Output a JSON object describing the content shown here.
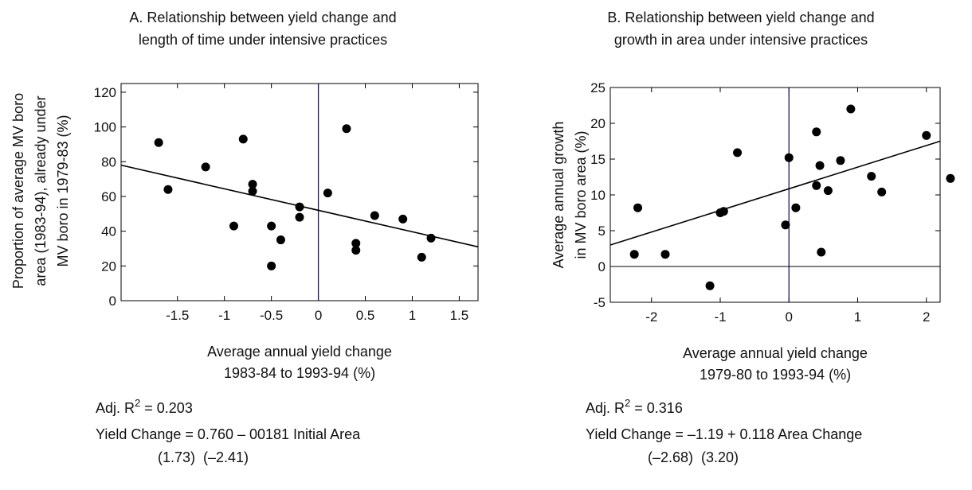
{
  "chart_data": [
    {
      "type": "scatter",
      "title": [
        "A. Relationship between yield change and",
        "length of time under intensive practices"
      ],
      "xlabel": [
        "Average annual yield change",
        "1983-84 to 1993-94 (%)"
      ],
      "ylabel": [
        "Proportion of average MV boro",
        "area (1983-94), already under",
        "MV boro in 1979-83 (%)"
      ],
      "x": [
        -1.7,
        -1.6,
        -1.2,
        -0.9,
        -0.8,
        -0.7,
        -0.7,
        -0.5,
        -0.5,
        -0.4,
        -0.2,
        -0.2,
        0.1,
        0.3,
        0.4,
        0.4,
        0.6,
        0.9,
        1.1,
        1.2
      ],
      "y": [
        91,
        64,
        77,
        43,
        93,
        67,
        63,
        43,
        20,
        35,
        54,
        48,
        62,
        99,
        33,
        29,
        49,
        47,
        25,
        36
      ],
      "color": "#000000",
      "trendline": {
        "x": [
          -2.1,
          1.7
        ],
        "y": [
          78,
          31
        ]
      },
      "vlines": [
        0
      ],
      "xlim": [
        -2.1,
        1.7
      ],
      "xticks": [
        -1.5,
        -1,
        -0.5,
        0,
        0.5,
        1,
        1.5
      ],
      "ylim": [
        0,
        125
      ],
      "yticks": [
        0,
        20,
        40,
        60,
        80,
        100,
        120
      ],
      "annotation": {
        "prefix": "Adj. R",
        "sup": "2",
        "suffix": " = 0.203"
      },
      "equation": "Yield Change = 0.760 – 00181 Initial Area",
      "tstats": "(1.73)  (–2.41)"
    },
    {
      "type": "scatter",
      "title": [
        "B. Relationship between yield change and",
        "growth in area under intensive practices"
      ],
      "xlabel": [
        "Average annual yield change",
        "1979-80 to 1993-94 (%)"
      ],
      "ylabel": [
        "Average annual growth",
        "in MV boro area (%)"
      ],
      "x": [
        -2.25,
        -2.2,
        -1.8,
        -1.15,
        -1.0,
        -0.95,
        -0.75,
        -0.05,
        0.0,
        0.1,
        0.4,
        0.4,
        0.45,
        0.47,
        0.57,
        0.75,
        0.9,
        1.2,
        1.35,
        2.0,
        2.35
      ],
      "y": [
        1.7,
        8.2,
        1.7,
        -2.7,
        7.5,
        7.7,
        15.9,
        5.8,
        15.2,
        8.2,
        18.8,
        11.3,
        14.1,
        2.0,
        10.6,
        14.8,
        22,
        12.6,
        10.4,
        18.3,
        12.3
      ],
      "color": "#000000",
      "trendline": {
        "x": [
          -2.6,
          2.2
        ],
        "y": [
          3,
          17.5
        ]
      },
      "vlines": [
        0
      ],
      "hlines": [
        0
      ],
      "xlim": [
        -2.6,
        2.2
      ],
      "xticks": [
        -2,
        -1,
        0,
        1,
        2
      ],
      "ylim": [
        -5,
        25
      ],
      "yticks": [
        -5,
        0,
        5,
        10,
        15,
        20,
        25
      ],
      "annotation": {
        "prefix": "Adj. R",
        "sup": "2",
        "suffix": " = 0.316"
      },
      "equation": "Yield Change = –1.19 + 0.118 Area Change",
      "tstats": "(–2.68)  (3.20)"
    }
  ]
}
